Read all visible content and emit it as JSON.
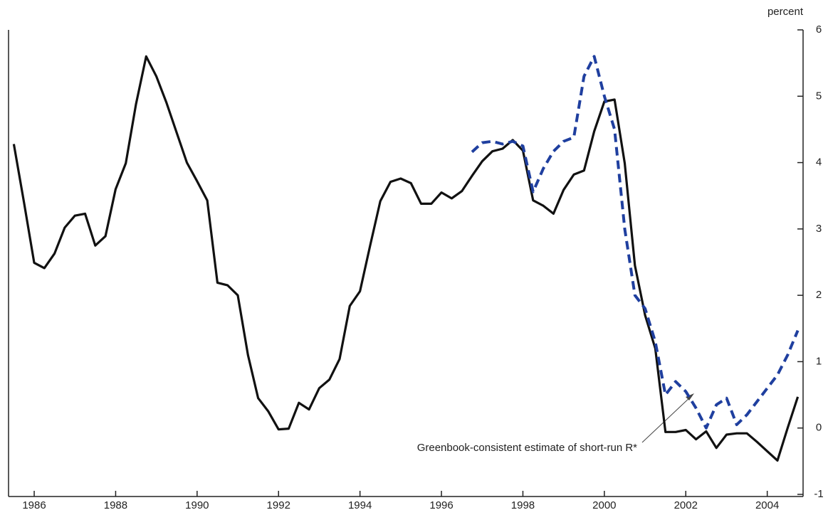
{
  "chart_data": {
    "type": "line",
    "y_axis_label": "percent",
    "annotation": "Greenbook-consistent estimate of short-run R*",
    "xlim": [
      1985.37,
      2004.88
    ],
    "xticks": [
      1986,
      1988,
      1990,
      1992,
      1994,
      1996,
      1998,
      2000,
      2002,
      2004
    ],
    "ylim": [
      -1,
      6
    ],
    "yticks": [
      -1,
      0,
      1,
      2,
      3,
      4,
      5,
      6
    ],
    "x": [
      1985.5,
      1985.75,
      1986,
      1986.25,
      1986.5,
      1986.75,
      1987,
      1987.25,
      1987.5,
      1987.75,
      1988,
      1988.25,
      1988.5,
      1988.75,
      1989,
      1989.25,
      1989.5,
      1989.75,
      1990,
      1990.25,
      1990.5,
      1990.75,
      1991,
      1991.25,
      1991.5,
      1991.75,
      1992,
      1992.25,
      1992.5,
      1992.75,
      1993,
      1993.25,
      1993.5,
      1993.75,
      1994,
      1994.25,
      1994.5,
      1994.75,
      1995,
      1995.25,
      1995.5,
      1995.75,
      1996,
      1996.25,
      1996.5,
      1996.75,
      1997,
      1997.25,
      1997.5,
      1997.75,
      1998,
      1998.25,
      1998.5,
      1998.75,
      1999,
      1999.25,
      1999.5,
      1999.75,
      2000,
      2000.25,
      2000.5,
      2000.75,
      2001,
      2001.25,
      2001.5,
      2001.75,
      2002,
      2002.25,
      2002.5,
      2002.75,
      2003,
      2003.25,
      2003.5,
      2003.75,
      2004,
      2004.25,
      2004.5,
      2004.75
    ],
    "series": [
      {
        "color": "#111111",
        "dash": false,
        "values": [
          4.28,
          3.4,
          2.49,
          2.41,
          2.63,
          3.02,
          3.2,
          3.23,
          2.75,
          2.89,
          3.6,
          3.99,
          4.88,
          5.6,
          5.3,
          4.9,
          4.45,
          4.0,
          3.72,
          3.43,
          2.19,
          2.15,
          2.0,
          1.1,
          0.45,
          0.25,
          -0.02,
          -0.01,
          0.38,
          0.28,
          0.6,
          0.73,
          1.04,
          1.84,
          2.06,
          2.75,
          3.42,
          3.71,
          3.76,
          3.69,
          3.38,
          3.38,
          3.55,
          3.46,
          3.57,
          3.8,
          4.02,
          4.17,
          4.21,
          4.34,
          4.18,
          3.43,
          3.35,
          3.23,
          3.59,
          3.82,
          3.88,
          4.47,
          4.92,
          4.95,
          3.99,
          2.45,
          1.7,
          1.2,
          -0.06,
          -0.06,
          -0.03,
          -0.17,
          -0.05,
          -0.3,
          -0.1,
          -0.08,
          -0.08,
          -0.21,
          -0.35,
          -0.49,
          0,
          0.47
        ]
      },
      {
        "color": "#1f3f9f",
        "dash": true,
        "values": [
          null,
          null,
          null,
          null,
          null,
          null,
          null,
          null,
          null,
          null,
          null,
          null,
          null,
          null,
          null,
          null,
          null,
          null,
          null,
          null,
          null,
          null,
          null,
          null,
          null,
          null,
          null,
          null,
          null,
          null,
          null,
          null,
          null,
          null,
          null,
          null,
          null,
          null,
          null,
          null,
          null,
          null,
          null,
          null,
          null,
          4.16,
          4.3,
          4.32,
          4.28,
          4.32,
          4.25,
          3.56,
          3.91,
          4.17,
          4.32,
          4.38,
          5.3,
          5.6,
          5.0,
          4.5,
          3.0,
          2.0,
          1.8,
          1.3,
          0.5,
          0.7,
          0.55,
          0.3,
          0.0,
          0.35,
          0.45,
          0.05,
          0.2,
          0.4,
          0.6,
          0.8,
          1.1,
          1.47
        ]
      }
    ]
  }
}
